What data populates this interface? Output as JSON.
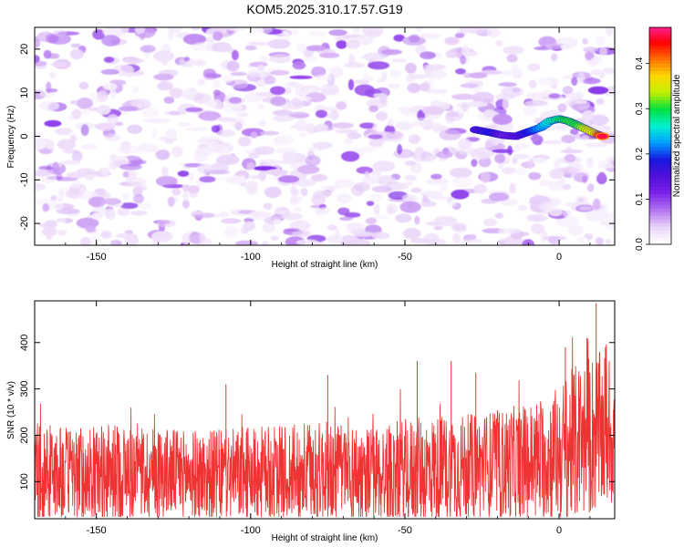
{
  "title": "KOM5.2025.310.17.57.G19",
  "chart_data": [
    {
      "type": "heatmap",
      "name": "spectrogram",
      "xlabel": "Height of straight line (km)",
      "ylabel": "Frequency (Hz)",
      "xlim": [
        -170,
        18
      ],
      "ylim": [
        -25,
        25
      ],
      "xticks": [
        -150,
        -100,
        -50,
        0
      ],
      "yticks": [
        -20,
        -10,
        0,
        10,
        20
      ],
      "colorbar": {
        "label": "Normalized spectral amplitude",
        "range": [
          0,
          0.48
        ],
        "ticks": [
          0.0,
          0.1,
          0.2,
          0.3,
          0.4
        ],
        "colormap": [
          "#ffffff",
          "#e8d0f8",
          "#b070f0",
          "#7a22e8",
          "#5010d8",
          "#1818e0",
          "#00a0ff",
          "#00f0d0",
          "#00e040",
          "#c0f000",
          "#ffd800",
          "#ff7000",
          "#ff0000",
          "#ff20a0"
        ]
      },
      "ridge": [
        {
          "x": -27,
          "y": 1.5,
          "a": 0.15
        },
        {
          "x": -22,
          "y": 0.8,
          "a": 0.18
        },
        {
          "x": -18,
          "y": 0.2,
          "a": 0.12
        },
        {
          "x": -14,
          "y": 0.0,
          "a": 0.14
        },
        {
          "x": -10,
          "y": 1.0,
          "a": 0.18
        },
        {
          "x": -6,
          "y": 2.0,
          "a": 0.22
        },
        {
          "x": -3,
          "y": 3.5,
          "a": 0.26
        },
        {
          "x": 0,
          "y": 4.0,
          "a": 0.28
        },
        {
          "x": 3,
          "y": 3.5,
          "a": 0.3
        },
        {
          "x": 6,
          "y": 2.5,
          "a": 0.3
        },
        {
          "x": 9,
          "y": 1.5,
          "a": 0.34
        },
        {
          "x": 12,
          "y": 0.5,
          "a": 0.36
        },
        {
          "x": 14,
          "y": 0.0,
          "a": 0.46
        }
      ]
    },
    {
      "type": "line",
      "name": "snr",
      "xlabel": "Height of straight line (km)",
      "ylabel": "SNR (10 * v/v)",
      "xlim": [
        -170,
        18
      ],
      "ylim": [
        20,
        490
      ],
      "xticks": [
        -150,
        -100,
        -50,
        0
      ],
      "yticks": [
        100,
        200,
        300,
        400
      ],
      "color": "#ee3333",
      "series": [
        {
          "name": "SNR",
          "x": [
            -170,
            -160,
            -150,
            -140,
            -130,
            -120,
            -110,
            -100,
            -90,
            -80,
            -70,
            -60,
            -50,
            -40,
            -30,
            -20,
            -10,
            -5,
            0,
            5,
            10,
            15,
            18
          ],
          "baseline": [
            120,
            118,
            115,
            118,
            120,
            115,
            112,
            118,
            115,
            120,
            118,
            115,
            120,
            125,
            130,
            135,
            140,
            150,
            160,
            180,
            200,
            210,
            205
          ],
          "amplitude": [
            110,
            100,
            105,
            110,
            100,
            95,
            100,
            100,
            105,
            110,
            110,
            105,
            115,
            120,
            115,
            120,
            130,
            140,
            150,
            170,
            180,
            170,
            160
          ]
        }
      ],
      "peaks": [
        {
          "x": -108,
          "y": 310
        },
        {
          "x": -75,
          "y": 330
        },
        {
          "x": -46,
          "y": 360
        },
        {
          "x": -35,
          "y": 360
        },
        {
          "x": -27,
          "y": 335
        },
        {
          "x": 2,
          "y": 390
        },
        {
          "x": 9,
          "y": 410
        },
        {
          "x": 12,
          "y": 485
        },
        {
          "x": 15,
          "y": 390
        }
      ]
    }
  ]
}
